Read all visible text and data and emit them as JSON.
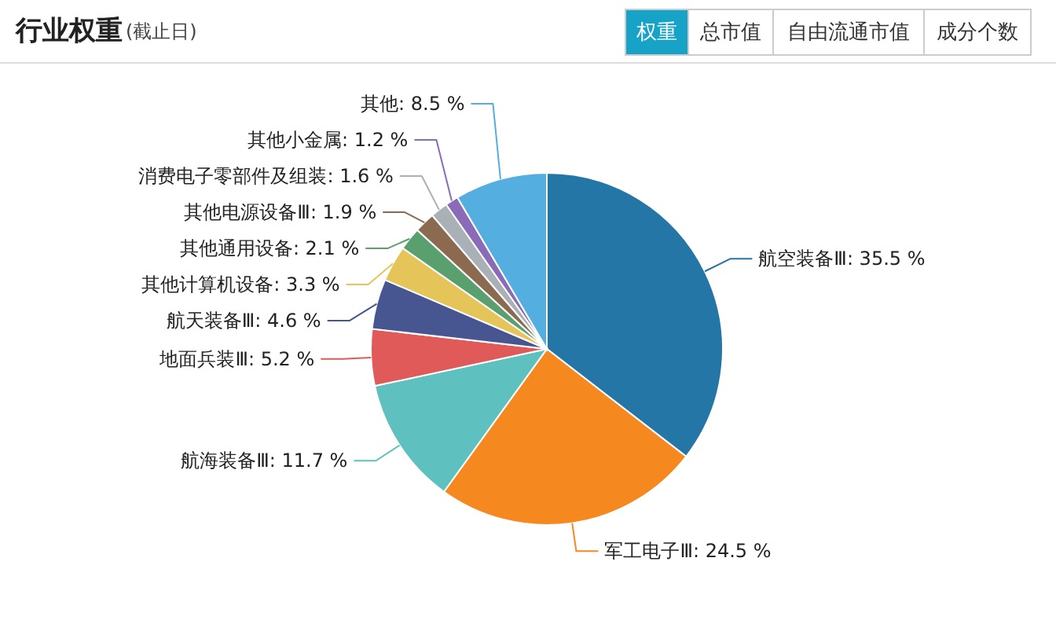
{
  "chart_data": {
    "type": "pie",
    "title": "行业权重",
    "subtitle": "(截止日)",
    "annotations": [
      "权重",
      "总市值",
      "自由流通市值",
      "成分个数"
    ],
    "categories": [
      "航空装备Ⅲ",
      "军工电子Ⅲ",
      "航海装备Ⅲ",
      "地面兵装Ⅲ",
      "航天装备Ⅲ",
      "其他计算机设备",
      "其他通用设备",
      "其他电源设备Ⅲ",
      "消费电子零部件及组装",
      "其他小金属",
      "其他"
    ],
    "values": [
      35.5,
      24.5,
      11.7,
      5.2,
      4.6,
      3.3,
      2.1,
      1.9,
      1.6,
      1.2,
      8.5
    ],
    "value_labels": [
      "35.5 %",
      "24.5 %",
      "11.7 %",
      "5.2 %",
      "4.6 %",
      "3.3 %",
      "2.1 %",
      "1.9 %",
      "1.6 %",
      "1.2 %",
      "8.5 %"
    ],
    "colors": [
      "#2376a6",
      "#f5881f",
      "#5fc0c0",
      "#e05a5a",
      "#475591",
      "#e5c45a",
      "#5aa06e",
      "#8b6a4f",
      "#a9b0b6",
      "#8a6bb8",
      "#55aee0"
    ]
  }
}
